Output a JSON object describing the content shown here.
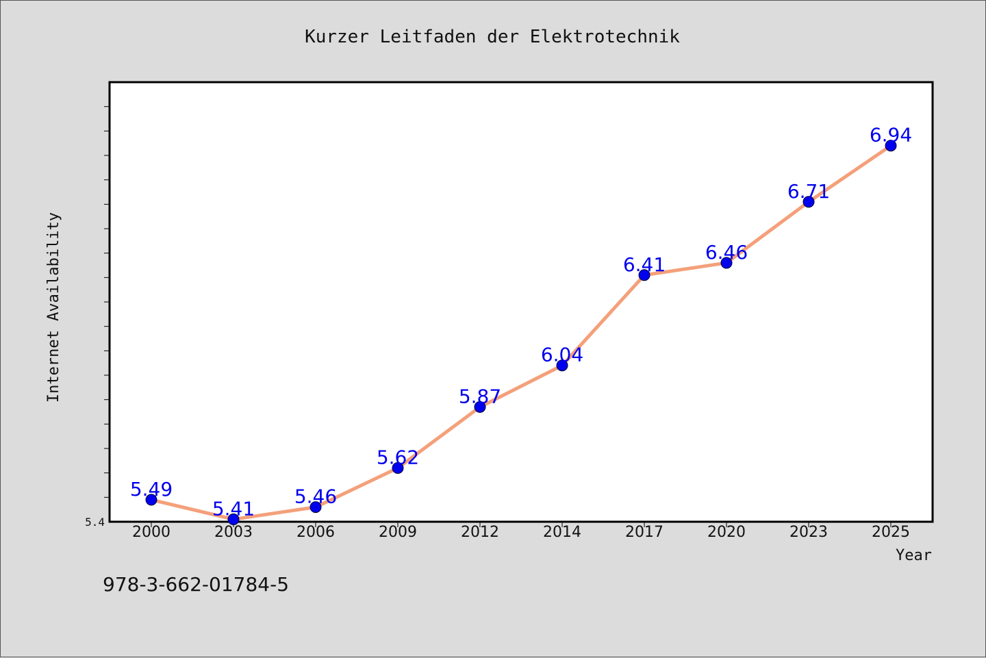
{
  "chart_data": {
    "type": "line",
    "title": "Kurzer Leitfaden der Elektrotechnik",
    "xlabel": "Year",
    "ylabel": "Internet Availability",
    "categories": [
      "2000",
      "2003",
      "2006",
      "2009",
      "2012",
      "2014",
      "2017",
      "2020",
      "2023",
      "2025"
    ],
    "series": [
      {
        "values": [
          5.49,
          5.41,
          5.46,
          5.62,
          5.87,
          6.04,
          6.41,
          6.46,
          6.71,
          6.94
        ],
        "line_color": "#f4a07a",
        "marker_color": "#0000ee",
        "label_color": "#0000ee"
      }
    ],
    "ylim": [
      5.4,
      7.2
    ],
    "y_tick_labels": [
      "5.4"
    ],
    "y_minor_tick_step": 0.1,
    "grid": false,
    "legend": "none"
  },
  "footer": {
    "isbn": "978-3-662-01784-5"
  }
}
